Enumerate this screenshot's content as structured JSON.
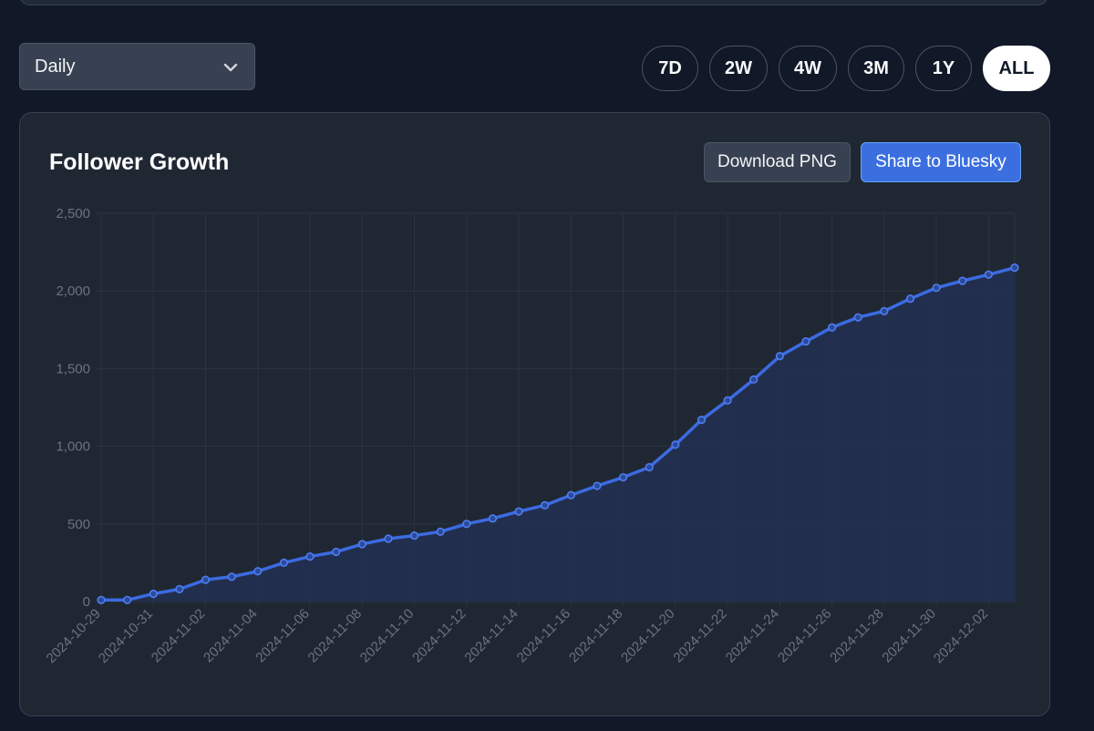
{
  "controls": {
    "period_select_value": "Daily",
    "ranges": [
      "7D",
      "2W",
      "4W",
      "3M",
      "1Y",
      "ALL"
    ],
    "active_range": "ALL"
  },
  "card": {
    "title": "Follower Growth",
    "download_label": "Download PNG",
    "share_label": "Share to Bluesky"
  },
  "colors": {
    "line": "#3b6be0",
    "fill": "#233054",
    "grid": "#2c3442",
    "tick_text": "#6b7280",
    "accent_button": "#3b6fe0"
  },
  "chart_data": {
    "type": "area",
    "title": "Follower Growth",
    "x": [
      "2024-10-29",
      "2024-10-30",
      "2024-10-31",
      "2024-11-01",
      "2024-11-02",
      "2024-11-03",
      "2024-11-04",
      "2024-11-05",
      "2024-11-06",
      "2024-11-07",
      "2024-11-08",
      "2024-11-09",
      "2024-11-10",
      "2024-11-11",
      "2024-11-12",
      "2024-11-13",
      "2024-11-14",
      "2024-11-15",
      "2024-11-16",
      "2024-11-17",
      "2024-11-18",
      "2024-11-19",
      "2024-11-20",
      "2024-11-21",
      "2024-11-22",
      "2024-11-23",
      "2024-11-24",
      "2024-11-25",
      "2024-11-26",
      "2024-11-27",
      "2024-11-28",
      "2024-11-29",
      "2024-11-30",
      "2024-12-01",
      "2024-12-02",
      "2024-12-03"
    ],
    "x_tick_labels": [
      "2024-10-29",
      "2024-10-31",
      "2024-11-02",
      "2024-11-04",
      "2024-11-06",
      "2024-11-08",
      "2024-11-10",
      "2024-11-12",
      "2024-11-14",
      "2024-11-16",
      "2024-11-18",
      "2024-11-20",
      "2024-11-22",
      "2024-11-24",
      "2024-11-26",
      "2024-11-28",
      "2024-11-30",
      "2024-12-02"
    ],
    "series": [
      {
        "values": [
          10,
          10,
          50,
          80,
          140,
          160,
          195,
          250,
          290,
          320,
          370,
          405,
          425,
          450,
          500,
          535,
          580,
          620,
          685,
          745,
          800,
          865,
          1010,
          1170,
          1295,
          1430,
          1580,
          1675,
          1765,
          1830,
          1870,
          1950,
          2020,
          2065,
          2105,
          2150
        ]
      }
    ],
    "y_ticks": [
      "0",
      "500",
      "1,000",
      "1,500",
      "2,000",
      "2,500"
    ],
    "ylim": [
      0,
      2500
    ],
    "xlabel": "",
    "ylabel": "",
    "grid": true,
    "legend": "none"
  }
}
